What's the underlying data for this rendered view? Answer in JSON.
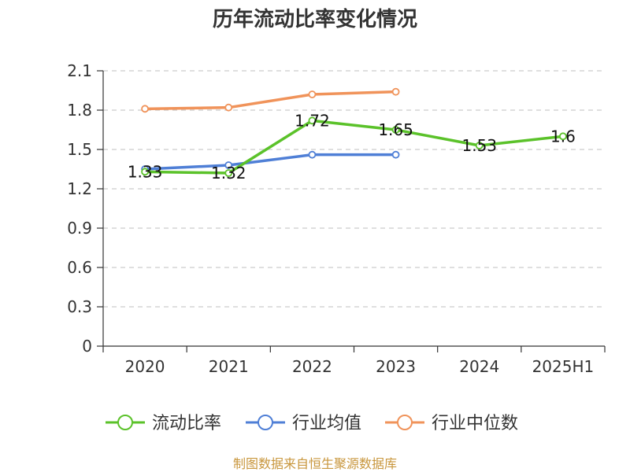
{
  "chart_data": {
    "type": "line",
    "title": "历年流动比率变化情况",
    "categories": [
      "2020",
      "2021",
      "2022",
      "2023",
      "2024",
      "2025H1"
    ],
    "ylim": [
      0,
      2.1
    ],
    "yticks": [
      "0",
      "0.3",
      "0.6",
      "0.9",
      "1.2",
      "1.5",
      "1.8",
      "2.1"
    ],
    "grid": true,
    "legend_position": "bottom",
    "series": [
      {
        "name": "流动比率",
        "color": "#5bc22a",
        "values": [
          1.33,
          1.32,
          1.72,
          1.65,
          1.53,
          1.6
        ],
        "labels": [
          "1.33",
          "1.32",
          "1.72",
          "1.65",
          "1.53",
          "1.6"
        ]
      },
      {
        "name": "行业均值",
        "color": "#4f7fd6",
        "values": [
          1.35,
          1.38,
          1.46,
          1.46,
          null,
          null
        ]
      },
      {
        "name": "行业中位数",
        "color": "#f0935a",
        "values": [
          1.81,
          1.82,
          1.92,
          1.94,
          null,
          null
        ]
      }
    ]
  },
  "source_text": "制图数据来自恒生聚源数据库"
}
